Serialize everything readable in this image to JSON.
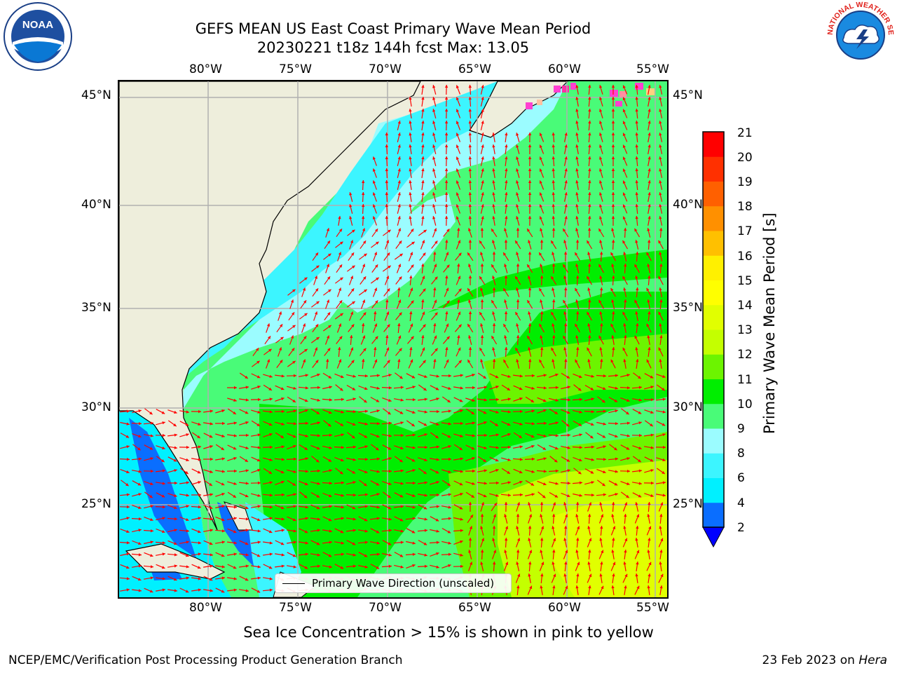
{
  "header": {
    "title_line1": "GEFS MEAN US East Coast Primary Wave Mean Period",
    "title_line2": "20230221 t18z 144h fcst   Max: 13.05"
  },
  "logos": {
    "left": "NOAA",
    "right": "NATIONAL WEATHER SERVICE"
  },
  "map": {
    "lon_labels": [
      "80°W",
      "75°W",
      "70°W",
      "65°W",
      "60°W",
      "55°W"
    ],
    "lat_labels": [
      "45°N",
      "40°N",
      "35°N",
      "30°N",
      "25°N"
    ],
    "lon_range": [
      -85,
      -54
    ],
    "lat_range": [
      20.5,
      45.8
    ],
    "land_color": "#eeeedc",
    "arrow_color": "#ff0000",
    "legend_label": "Primary Wave Direction (unscaled)"
  },
  "colorbar": {
    "label": "Primary Wave Mean Period [s]",
    "ticks": [
      "21",
      "20",
      "19",
      "18",
      "17",
      "16",
      "15",
      "14",
      "13",
      "12",
      "11",
      "10",
      "9",
      "8",
      "6",
      "4",
      "2"
    ],
    "colors_bottom_to_top": [
      "#0a6eff",
      "#00f0ff",
      "#3cf5ff",
      "#9bfcff",
      "#49fb78",
      "#00ee00",
      "#6cf400",
      "#c4ff00",
      "#e1ff00",
      "#ffff00",
      "#fff000",
      "#ffc000",
      "#ff9000",
      "#ff6000",
      "#ff3000",
      "#ff0000"
    ],
    "extend_below_color": "#0000ff"
  },
  "footer": {
    "note": "Sea Ice Concentration > 15% is shown in pink to yellow",
    "left_credit": "NCEP/EMC/Verification Post Processing Product Generation Branch",
    "right_credit_date": "23 Feb 2023 on ",
    "right_credit_host": "Hera"
  }
}
